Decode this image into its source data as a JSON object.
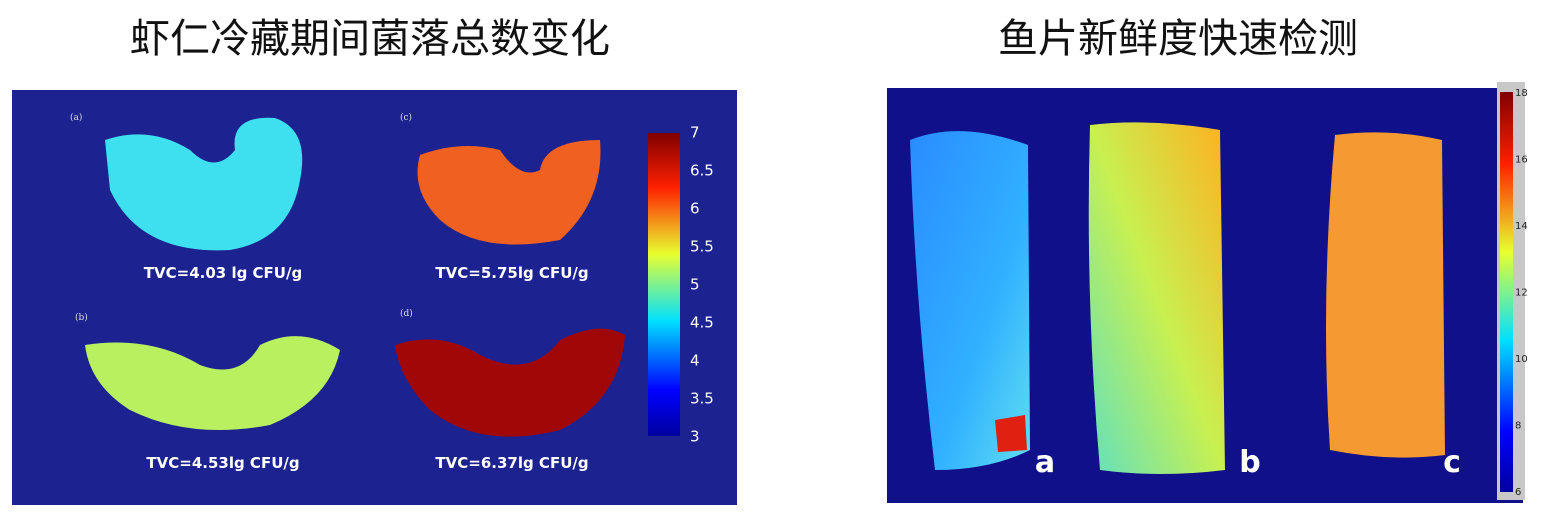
{
  "left": {
    "title": "虾仁冷藏期间菌落总数变化",
    "panels": [
      {
        "label": "(a)",
        "caption": "TVC=4.03 lg CFU/g"
      },
      {
        "label": "(c)",
        "caption": "TVC=5.75lg CFU/g"
      },
      {
        "label": "(b)",
        "caption": "TVC=4.53lg CFU/g"
      },
      {
        "label": "(d)",
        "caption": "TVC=6.37lg CFU/g"
      }
    ],
    "colorbar_ticks": [
      7,
      6.5,
      6,
      5.5,
      5,
      4.5,
      4,
      3.5,
      3
    ]
  },
  "right": {
    "title": "鱼片新鲜度快速检测",
    "samples": [
      "a",
      "b",
      "c"
    ],
    "colorbar_ticks": [
      18,
      16,
      14,
      12,
      10,
      8,
      6
    ]
  }
}
